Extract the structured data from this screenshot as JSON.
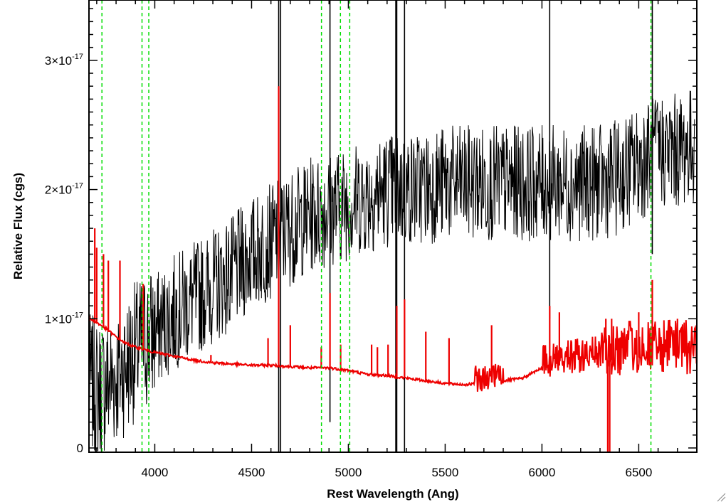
{
  "chart_data": {
    "type": "line",
    "xlabel": "Rest Wavelength (Ang)",
    "ylabel": "Relative Flux (cgs)",
    "xlim": [
      3660,
      6800
    ],
    "ylim": [
      0,
      3.5e-17
    ],
    "x_ticks": [
      {
        "value": 4000,
        "label": "4000"
      },
      {
        "value": 4500,
        "label": "4500"
      },
      {
        "value": 5000,
        "label": "5000"
      },
      {
        "value": 5500,
        "label": "5500"
      },
      {
        "value": 6000,
        "label": "6000"
      },
      {
        "value": 6500,
        "label": "6500"
      }
    ],
    "y_ticks": [
      {
        "value": 0,
        "label": "0",
        "mantissa": "",
        "exponent": ""
      },
      {
        "value": 1e-17,
        "label": "1×10⁻¹⁷",
        "mantissa": "1×10",
        "exponent": "-17"
      },
      {
        "value": 2e-17,
        "label": "2×10⁻¹⁷",
        "mantissa": "2×10",
        "exponent": "-17"
      },
      {
        "value": 3e-17,
        "label": "3×10⁻¹⁷",
        "mantissa": "3×10",
        "exponent": "-17"
      }
    ],
    "grid": false,
    "legend": "none",
    "vertical_lines": {
      "color": "#00dd00",
      "style": "dashed",
      "x": [
        3727,
        3934,
        3969,
        4861,
        4959,
        5007,
        6563
      ]
    },
    "series": [
      {
        "color": "#000000",
        "kind": "noisy observed spectrum",
        "anchors": {
          "x": [
            3665,
            3700,
            3800,
            3900,
            4000,
            4100,
            4200,
            4300,
            4400,
            4500,
            4600,
            4700,
            4800,
            4900,
            5000,
            5100,
            5200,
            5300,
            5400,
            5500,
            5600,
            5700,
            5800,
            5900,
            6000,
            6100,
            6200,
            6300,
            6400,
            6500,
            6600,
            6700,
            6790
          ],
          "y": [
            5e-18,
            4.5e-18,
            5.5e-18,
            7.5e-18,
            9e-18,
            1.05e-17,
            1.15e-17,
            1.25e-17,
            1.35e-17,
            1.5e-17,
            1.6e-17,
            1.7e-17,
            1.8e-17,
            1.85e-17,
            1.9e-17,
            1.95e-17,
            2e-17,
            2e-17,
            2.02e-17,
            2.05e-17,
            2.05e-17,
            2.05e-17,
            2.05e-17,
            2.05e-17,
            2.05e-17,
            2.05e-17,
            2.05e-17,
            2.05e-17,
            2.1e-17,
            2.2e-17,
            2.3e-17,
            2.3e-17,
            2.35e-17
          ]
        },
        "spikes": {
          "x": [
            4640,
            4650,
            4905,
            5245,
            5250,
            5290,
            6040,
            6570
          ],
          "y_low": [
            -2e-18,
            -2e-18,
            2e-18,
            -2e-18,
            -2e-18,
            -2e-18,
            1e-17,
            1.5e-17
          ],
          "y_high": [
            3.6e-17,
            3.6e-17,
            3.6e-17,
            3.6e-17,
            3.6e-17,
            3.6e-17,
            3.6e-17,
            3.6e-17
          ]
        }
      },
      {
        "color": "#ee0000",
        "kind": "smooth model spectrum",
        "continuum": {
          "x": [
            3665,
            3700,
            3750,
            3800,
            3850,
            3900,
            3950,
            4000,
            4100,
            4200,
            4300,
            4400,
            4500,
            4600,
            4700,
            4800,
            4900,
            5000,
            5100,
            5200,
            5300,
            5400,
            5500,
            5600,
            5700,
            5800,
            5900,
            6000,
            6100,
            6200,
            6300,
            6400,
            6500,
            6600,
            6700,
            6800
          ],
          "y": [
            1e-17,
            9.7e-18,
            9.2e-18,
            8.6e-18,
            8.1e-18,
            7.8e-18,
            7.6e-18,
            7.4e-18,
            7.1e-18,
            6.8e-18,
            6.6e-18,
            6.5e-18,
            6.4e-18,
            6.4e-18,
            6.3e-18,
            6.2e-18,
            6.2e-18,
            6e-18,
            5.7e-18,
            5.6e-18,
            5.4e-18,
            5.2e-18,
            5e-18,
            4.9e-18,
            5e-18,
            5.2e-18,
            5.4e-18,
            6.2e-18,
            6.4e-18,
            6.6e-18,
            6.8e-18,
            6.8e-18,
            7e-18,
            7e-18,
            7e-18,
            7e-18
          ]
        },
        "spikes": {
          "x": [
            3690,
            3700,
            3735,
            3760,
            3820,
            3940,
            4290,
            4585,
            4640,
            4700,
            4860,
            4905,
            4960,
            5120,
            5150,
            5205,
            5250,
            5290,
            5400,
            5520,
            5740,
            6040,
            6090,
            6330,
            6360,
            6500,
            6570,
            6700
          ],
          "y": [
            1.7e-17,
            1.55e-17,
            1.5e-17,
            1.45e-17,
            1.45e-17,
            1.27e-17,
            7.2e-18,
            8.5e-18,
            2.8e-17,
            9.5e-18,
            7.8e-18,
            1.2e-17,
            8e-18,
            8e-18,
            7.8e-18,
            8e-18,
            1.1e-17,
            1.15e-17,
            9e-18,
            8.5e-18,
            9.5e-18,
            1.1e-17,
            1.05e-17,
            1e-17,
            1e-17,
            1.05e-17,
            1.3e-17,
            1e-17
          ]
        },
        "dips": {
          "x": [
            6340,
            6350
          ],
          "y": [
            -2e-18,
            -2e-18
          ]
        }
      }
    ]
  }
}
